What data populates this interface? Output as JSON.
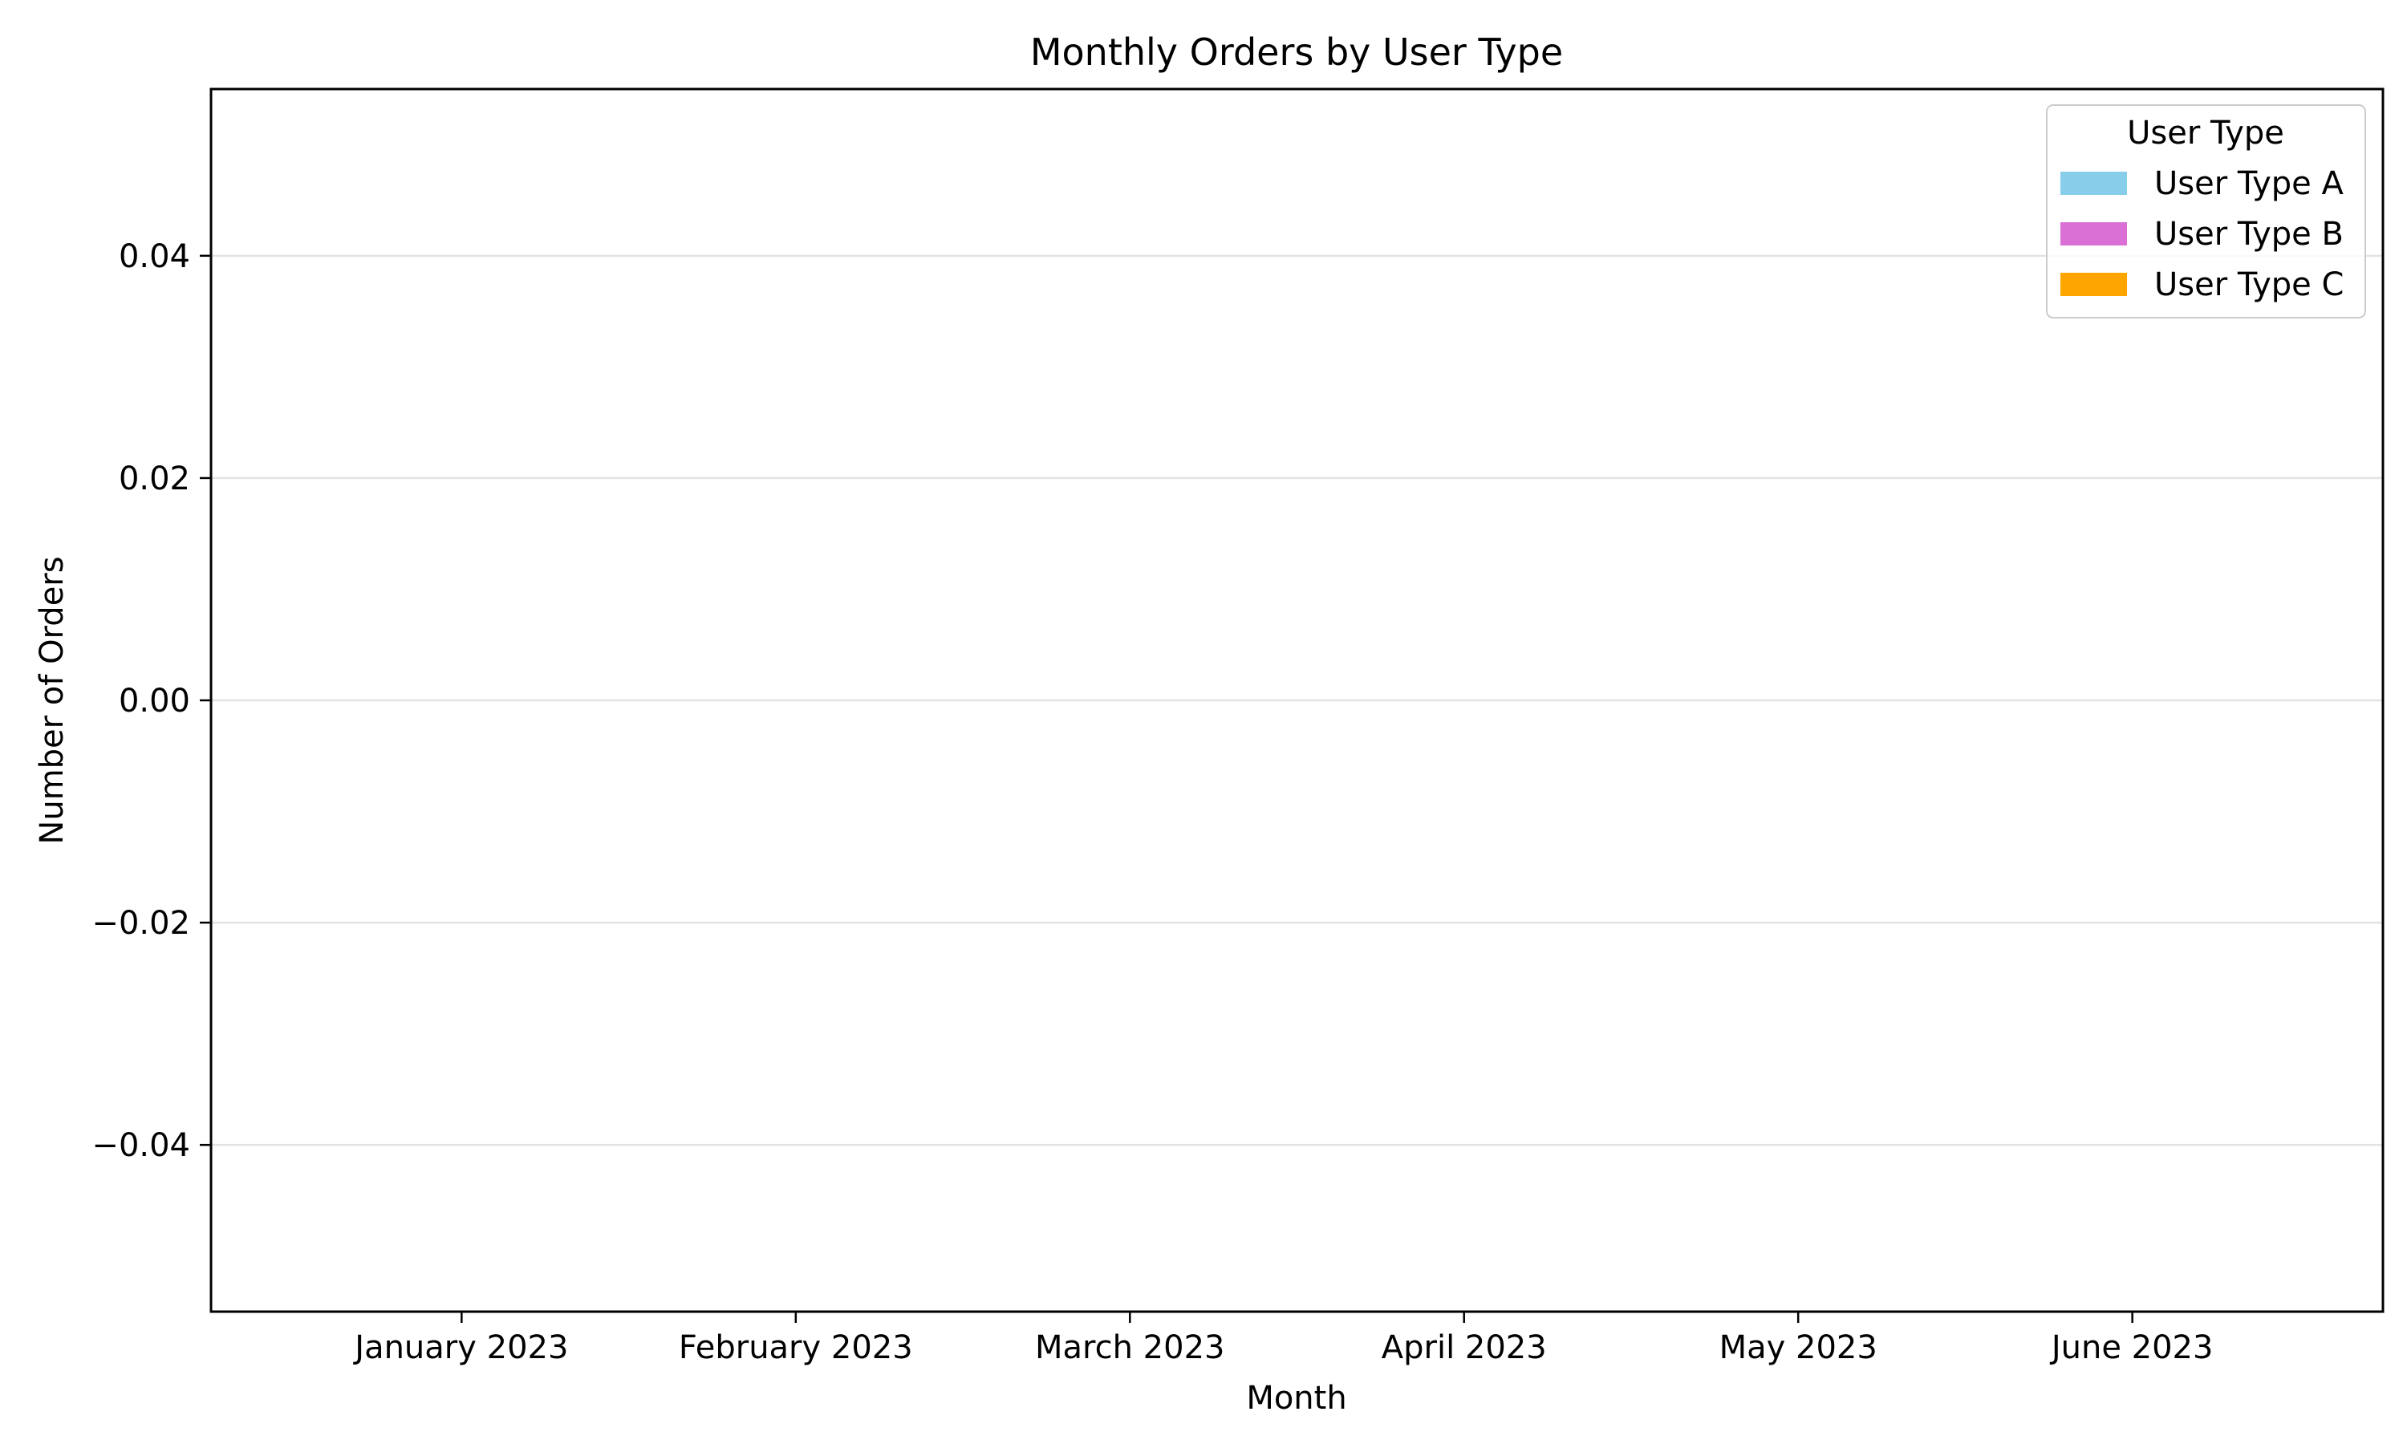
{
  "chart_data": {
    "type": "bar",
    "title": "Monthly Orders by User Type",
    "xlabel": "Month",
    "ylabel": "Number of Orders",
    "categories": [
      "January 2023",
      "February 2023",
      "March 2023",
      "April 2023",
      "May 2023",
      "June 2023"
    ],
    "series": [
      {
        "name": "User Type A",
        "color": "#87ceeb",
        "values": [
          0,
          0,
          0,
          0,
          0,
          0
        ]
      },
      {
        "name": "User Type B",
        "color": "#da70d6",
        "values": [
          0,
          0,
          0,
          0,
          0,
          0
        ]
      },
      {
        "name": "User Type C",
        "color": "#ffa500",
        "values": [
          0,
          0,
          0,
          0,
          0,
          0
        ]
      }
    ],
    "stacked": true,
    "ylim": [
      -0.055,
      0.055
    ],
    "yticks": [
      0.04,
      0.02,
      0.0,
      -0.02,
      -0.04
    ],
    "ytick_labels": [
      "0.04",
      "0.02",
      "0.00",
      "−0.02",
      "−0.04"
    ],
    "grid": "y",
    "legend": {
      "title": "User Type",
      "placement": "top-right"
    }
  }
}
